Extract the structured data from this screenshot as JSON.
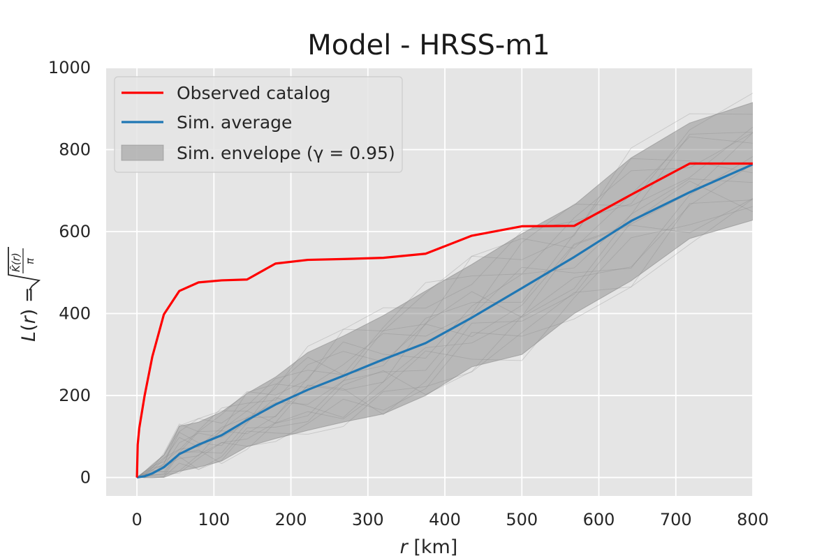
{
  "chart_data": {
    "type": "line",
    "title": "Model - HRSS-m1",
    "xlabel": "r  [km]",
    "ylabel": "L(r) = √(K̂(r)/π)",
    "xlim": [
      -40,
      800
    ],
    "ylim": [
      -45,
      1000
    ],
    "xticks": [
      0,
      100,
      200,
      300,
      400,
      500,
      600,
      700,
      800
    ],
    "yticks": [
      0,
      200,
      400,
      600,
      800,
      1000
    ],
    "grid": true,
    "legend_position": "top-left",
    "colors": {
      "observed": "#ff0000",
      "average": "#1f77b4",
      "envelope": "#808080",
      "background": "#e5e5e5",
      "grid": "#ffffff",
      "sim_lines": "#8c8c8c"
    },
    "series": [
      {
        "name": "Observed catalog",
        "x": [
          0,
          1,
          3,
          10,
          20,
          35,
          55,
          80,
          110,
          143,
          180,
          222,
          268,
          320,
          375,
          435,
          500,
          568,
          642,
          718,
          800
        ],
        "y": [
          0,
          80,
          120,
          200,
          295,
          398,
          455,
          476,
          481,
          483,
          522,
          531,
          533,
          536,
          546,
          590,
          613,
          614,
          690,
          766,
          766
        ]
      },
      {
        "name": "Sim. average",
        "x": [
          0,
          3,
          10,
          20,
          35,
          55,
          80,
          110,
          143,
          180,
          222,
          268,
          320,
          375,
          435,
          500,
          568,
          642,
          718,
          800
        ],
        "y": [
          0,
          1,
          3,
          10,
          25,
          57,
          80,
          103,
          140,
          178,
          214,
          248,
          288,
          328,
          390,
          462,
          538,
          626,
          696,
          764
        ]
      },
      {
        "name": "Sim. envelope (γ = 0.95)",
        "x": [
          0,
          3,
          10,
          20,
          35,
          55,
          80,
          110,
          143,
          180,
          222,
          268,
          320,
          375,
          435,
          500,
          568,
          642,
          718,
          800
        ],
        "upper": [
          0,
          5,
          15,
          30,
          55,
          125,
          135,
          160,
          205,
          245,
          305,
          345,
          395,
          455,
          520,
          595,
          665,
          780,
          865,
          915
        ],
        "lower": [
          0,
          0,
          0,
          0,
          0,
          15,
          25,
          40,
          75,
          95,
          115,
          135,
          155,
          200,
          270,
          300,
          400,
          480,
          583,
          628
        ]
      }
    ],
    "legend": [
      {
        "label": "Observed catalog",
        "kind": "line",
        "color": "#ff0000"
      },
      {
        "label": "Sim. average",
        "kind": "line",
        "color": "#1f77b4"
      },
      {
        "label": "Sim. envelope (γ = 0.95)",
        "kind": "patch",
        "color": "#808080"
      }
    ]
  }
}
